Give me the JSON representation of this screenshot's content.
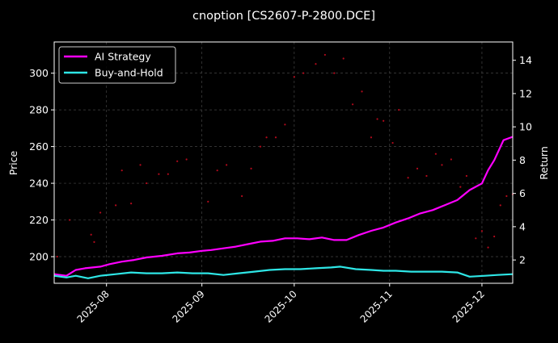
{
  "chart_data": {
    "type": "line",
    "title": "cnoption [CS2607-P-2800.DCE]",
    "ylabel_left": "Price",
    "ylabel_right": "Return",
    "x_ticks": [
      "2025-08",
      "2025-09",
      "2025-10",
      "2025-11",
      "2025-12"
    ],
    "x_range": [
      "2025-07-15",
      "2025-12-11"
    ],
    "y_left_ticks": [
      200,
      220,
      240,
      260,
      280,
      300
    ],
    "y_left_range": [
      185.5,
      317
    ],
    "y_right_ticks": [
      2,
      4,
      6,
      8,
      10,
      12,
      14
    ],
    "y_right_range": [
      0.6,
      15.1
    ],
    "grid": true,
    "legend_position": "top-left",
    "series": [
      {
        "name": "AI Strategy",
        "axis": "right",
        "color": "#ff00ff",
        "x": [
          "2025-07-15",
          "2025-07-19",
          "2025-07-22",
          "2025-07-25",
          "2025-07-30",
          "2025-08-02",
          "2025-08-06",
          "2025-08-10",
          "2025-08-14",
          "2025-08-19",
          "2025-08-24",
          "2025-08-28",
          "2025-09-01",
          "2025-09-04",
          "2025-09-08",
          "2025-09-12",
          "2025-09-16",
          "2025-09-20",
          "2025-09-24",
          "2025-09-28",
          "2025-10-02",
          "2025-10-06",
          "2025-10-10",
          "2025-10-14",
          "2025-10-18",
          "2025-10-22",
          "2025-10-26",
          "2025-10-30",
          "2025-11-03",
          "2025-11-07",
          "2025-11-11",
          "2025-11-15",
          "2025-11-19",
          "2025-11-23",
          "2025-11-27",
          "2025-12-01",
          "2025-12-03",
          "2025-12-05",
          "2025-12-08",
          "2025-12-11"
        ],
        "values": [
          1.15,
          1.05,
          1.4,
          1.5,
          1.6,
          1.75,
          1.9,
          2.0,
          2.15,
          2.25,
          2.4,
          2.45,
          2.55,
          2.6,
          2.7,
          2.8,
          2.95,
          3.1,
          3.15,
          3.3,
          3.3,
          3.25,
          3.35,
          3.2,
          3.2,
          3.5,
          3.75,
          3.95,
          4.25,
          4.5,
          4.8,
          5.0,
          5.3,
          5.6,
          6.2,
          6.6,
          7.4,
          8.0,
          9.2,
          9.4
        ]
      },
      {
        "name": "Buy-and-Hold",
        "axis": "right",
        "color": "#2ee6e6",
        "x": [
          "2025-07-15",
          "2025-07-19",
          "2025-07-22",
          "2025-07-26",
          "2025-07-30",
          "2025-08-04",
          "2025-08-09",
          "2025-08-14",
          "2025-08-19",
          "2025-08-24",
          "2025-08-29",
          "2025-09-03",
          "2025-09-08",
          "2025-09-13",
          "2025-09-18",
          "2025-09-23",
          "2025-09-28",
          "2025-10-03",
          "2025-10-08",
          "2025-10-13",
          "2025-10-16",
          "2025-10-21",
          "2025-10-26",
          "2025-10-30",
          "2025-11-03",
          "2025-11-08",
          "2025-11-13",
          "2025-11-18",
          "2025-11-23",
          "2025-11-27",
          "2025-12-02",
          "2025-12-06",
          "2025-12-11"
        ],
        "values": [
          1.05,
          0.95,
          1.05,
          0.9,
          1.05,
          1.15,
          1.25,
          1.2,
          1.2,
          1.25,
          1.2,
          1.2,
          1.1,
          1.2,
          1.3,
          1.4,
          1.45,
          1.45,
          1.5,
          1.55,
          1.6,
          1.45,
          1.4,
          1.35,
          1.35,
          1.3,
          1.3,
          1.3,
          1.25,
          1.0,
          1.05,
          1.1,
          1.15
        ]
      },
      {
        "name": "",
        "axis": "left",
        "type": "scatter",
        "color": "#b30a1c",
        "x": [
          "2025-07-16",
          "2025-07-20",
          "2025-07-27",
          "2025-07-28",
          "2025-07-30",
          "2025-08-04",
          "2025-08-06",
          "2025-08-09",
          "2025-08-12",
          "2025-08-14",
          "2025-08-18",
          "2025-08-21",
          "2025-08-24",
          "2025-08-27",
          "2025-09-03",
          "2025-09-06",
          "2025-09-09",
          "2025-09-14",
          "2025-09-17",
          "2025-09-20",
          "2025-09-22",
          "2025-09-25",
          "2025-09-28",
          "2025-10-01",
          "2025-10-04",
          "2025-10-08",
          "2025-10-11",
          "2025-10-14",
          "2025-10-17",
          "2025-10-20",
          "2025-10-23",
          "2025-10-26",
          "2025-10-28",
          "2025-10-30",
          "2025-11-02",
          "2025-11-04",
          "2025-11-07",
          "2025-11-10",
          "2025-11-13",
          "2025-11-16",
          "2025-11-18",
          "2025-11-21",
          "2025-11-24",
          "2025-11-26",
          "2025-11-29",
          "2025-12-01",
          "2025-12-03",
          "2025-12-05",
          "2025-12-07",
          "2025-12-09",
          "2025-12-11"
        ],
        "values": [
          200,
          220,
          212,
          208,
          224,
          228,
          247,
          229,
          250,
          240,
          245,
          245,
          252,
          253,
          230,
          247,
          250,
          233,
          248,
          260,
          265,
          265,
          272,
          298,
          300,
          305,
          310,
          300,
          308,
          283,
          290,
          265,
          275,
          274,
          262,
          280,
          243,
          248,
          244,
          256,
          250,
          253,
          238,
          244,
          210,
          214,
          205,
          211,
          228,
          233,
          234
        ]
      }
    ]
  }
}
